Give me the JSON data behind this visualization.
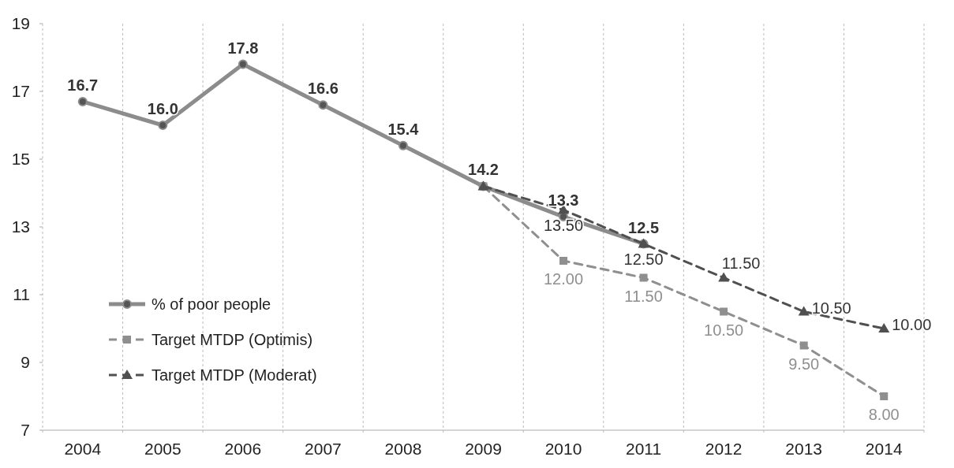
{
  "chart_data": {
    "type": "line",
    "categories": [
      "2004",
      "2005",
      "2006",
      "2007",
      "2008",
      "2009",
      "2010",
      "2011",
      "2012",
      "2013",
      "2014"
    ],
    "ylim": [
      7,
      19
    ],
    "yticks": [
      7,
      9,
      11,
      13,
      15,
      17,
      19
    ],
    "grid": "x",
    "legend": "bottom left",
    "series": [
      {
        "name": "% of poor people",
        "color": "#8c8c8c",
        "marker": "circle",
        "line_style": "solid",
        "values": [
          16.7,
          16.0,
          17.8,
          16.6,
          15.4,
          14.2,
          13.3,
          12.5,
          null,
          null,
          null
        ],
        "value_labels": [
          "16.7",
          "16.0",
          "17.8",
          "16.6",
          "15.4",
          "14.2",
          "13.3",
          "12.5",
          null,
          null,
          null
        ]
      },
      {
        "name": "Target MTDP (Optimis)",
        "color": "#8f8f8f",
        "marker": "square",
        "line_style": "dashed",
        "values": [
          null,
          null,
          null,
          null,
          null,
          14.2,
          12.0,
          11.5,
          10.5,
          9.5,
          8.0
        ],
        "value_labels": [
          null,
          null,
          null,
          null,
          null,
          null,
          "12.00",
          "11.50",
          "10.50",
          "9.50",
          "8.00"
        ]
      },
      {
        "name": "Target MTDP (Moderat)",
        "color": "#505050",
        "marker": "triangle",
        "line_style": "dashed",
        "values": [
          null,
          null,
          null,
          null,
          null,
          14.2,
          13.5,
          12.5,
          11.5,
          10.5,
          10.0
        ],
        "value_labels": [
          null,
          null,
          null,
          null,
          null,
          null,
          "13.50",
          "12.50",
          "11.50",
          "10.50",
          "10.00"
        ]
      }
    ]
  }
}
